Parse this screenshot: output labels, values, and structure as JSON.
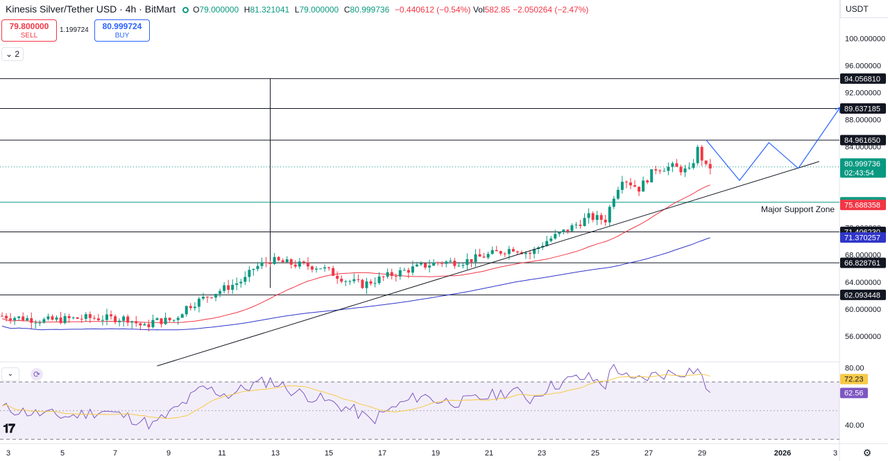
{
  "header": {
    "title": "Kinesis Silver/Tether USD · 4h · BitMart",
    "open_label": "O",
    "open": "79.000000",
    "high_label": "H",
    "high": "81.321041",
    "low_label": "L",
    "low": "79.000000",
    "close_label": "C",
    "close": "80.999736",
    "change": "−0.440612 (−0.54%)",
    "vol_label": "Vol",
    "vol": "582.85",
    "vol_change": "−2.050264 (−2.47%)"
  },
  "trade": {
    "sell_price": "79.800000",
    "sell_label": "SELL",
    "spread": "1.199724",
    "buy_price": "80.999724",
    "buy_label": "BUY",
    "collapse_count": "2"
  },
  "currency": "USDT",
  "colors": {
    "up": "#089981",
    "down": "#f23645",
    "ma_fast": "#f23645",
    "ma_slow": "#2f35c8",
    "projection": "#2962ff",
    "rsi": "#7e57c2",
    "rsi_ma": "#f7c948"
  },
  "chart_data": [
    {
      "type": "candlestick",
      "title": "Kinesis Silver/Tether USD · 4h · BitMart",
      "x_ticks": [
        "3",
        "5",
        "7",
        "9",
        "11",
        "13",
        "15",
        "17",
        "19",
        "21",
        "23",
        "25",
        "27",
        "29",
        "2026",
        "3"
      ],
      "y_ticks": [
        "100.000000",
        "96.000000",
        "92.000000",
        "88.000000",
        "84.000000",
        "80.000000",
        "76.000000",
        "72.000000",
        "68.000000",
        "64.000000",
        "60.000000",
        "56.000000"
      ],
      "ylim": [
        52.2,
        103.0
      ],
      "candle_count": 170,
      "close_trend": [
        [
          0,
          59.0
        ],
        [
          10,
          58.3
        ],
        [
          20,
          58.7
        ],
        [
          30,
          58.6
        ],
        [
          34,
          57.3
        ],
        [
          36,
          58.2
        ],
        [
          41,
          58.4
        ],
        [
          44,
          60.3
        ],
        [
          50,
          62.2
        ],
        [
          58,
          64.4
        ],
        [
          60,
          66.0
        ],
        [
          64,
          67.2
        ],
        [
          70,
          66.6
        ],
        [
          76,
          66.2
        ],
        [
          82,
          64.3
        ],
        [
          86,
          63.6
        ],
        [
          92,
          64.9
        ],
        [
          98,
          66.0
        ],
        [
          104,
          66.9
        ],
        [
          110,
          67.0
        ],
        [
          116,
          68.0
        ],
        [
          122,
          69.0
        ],
        [
          126,
          68.2
        ],
        [
          130,
          70.1
        ],
        [
          136,
          72.1
        ],
        [
          140,
          73.6
        ],
        [
          144,
          73.2
        ],
        [
          146,
          76.8
        ],
        [
          148,
          79.4
        ],
        [
          152,
          77.8
        ],
        [
          156,
          80.8
        ],
        [
          160,
          81.0
        ],
        [
          164,
          80.3
        ],
        [
          166,
          83.6
        ],
        [
          168,
          80.9
        ],
        [
          169,
          81.0
        ]
      ],
      "last_price": "80.999736",
      "countdown": "02:43:54",
      "levels": [
        {
          "price": "94.056810",
          "color": "#131722"
        },
        {
          "price": "89.637185",
          "color": "#131722"
        },
        {
          "price": "84.961650",
          "color": "#131722"
        },
        {
          "price": "75.783871",
          "color": "#089981"
        },
        {
          "price": "71.406230",
          "color": "#131722"
        },
        {
          "price": "66.828761",
          "color": "#131722"
        },
        {
          "price": "62.093448",
          "color": "#131722"
        }
      ],
      "moving_averages": [
        {
          "value": "75.688358",
          "color": "#f23645"
        },
        {
          "value": "71.370257",
          "color": "#2f35c8"
        }
      ],
      "annotation": "Major Support Zone",
      "trendline": [
        [
          37,
          51.6
        ],
        [
          195,
          81.8
        ]
      ],
      "projection": [
        [
          168,
          85.0
        ],
        [
          176,
          79.0
        ],
        [
          183,
          84.6
        ],
        [
          190,
          80.8
        ],
        [
          200,
          89.8
        ]
      ]
    },
    {
      "type": "line",
      "title": "RSI",
      "y_ticks": [
        "80.00",
        "40.00"
      ],
      "ylim": [
        27,
        84
      ],
      "bands": [
        70,
        30
      ],
      "middle": 50,
      "rsi_value": "62.56",
      "rsi_ma_value": "72.23",
      "rsi_trend": [
        [
          0,
          52
        ],
        [
          8,
          48
        ],
        [
          16,
          46
        ],
        [
          24,
          50
        ],
        [
          32,
          44
        ],
        [
          36,
          40
        ],
        [
          42,
          52
        ],
        [
          48,
          66
        ],
        [
          54,
          61
        ],
        [
          60,
          68
        ],
        [
          64,
          71
        ],
        [
          70,
          63
        ],
        [
          76,
          58
        ],
        [
          84,
          50
        ],
        [
          88,
          43
        ],
        [
          94,
          53
        ],
        [
          100,
          61
        ],
        [
          104,
          57
        ],
        [
          110,
          56
        ],
        [
          116,
          60
        ],
        [
          122,
          64
        ],
        [
          126,
          58
        ],
        [
          130,
          66
        ],
        [
          136,
          72
        ],
        [
          140,
          73
        ],
        [
          144,
          68
        ],
        [
          146,
          82
        ],
        [
          150,
          70
        ],
        [
          156,
          75
        ],
        [
          162,
          77
        ],
        [
          166,
          79
        ],
        [
          168,
          66
        ],
        [
          169,
          63
        ]
      ]
    }
  ]
}
